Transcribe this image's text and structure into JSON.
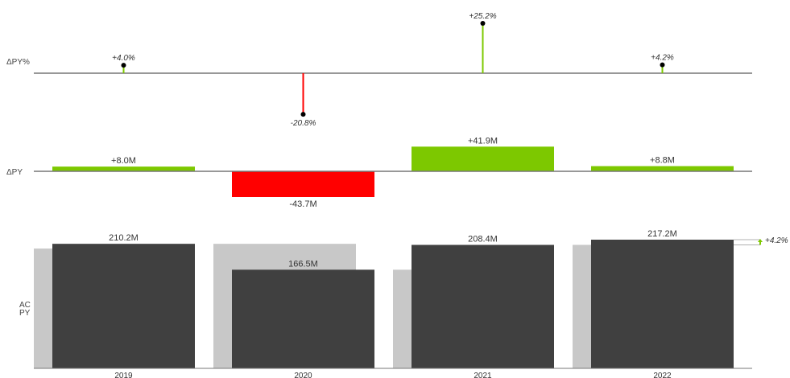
{
  "chart_data": {
    "type": "bar",
    "categories": [
      "2019",
      "2020",
      "2021",
      "2022"
    ],
    "row_labels": {
      "dpy_pct": "ΔPY%",
      "dpy": "ΔPY",
      "ac": "AC",
      "py": "PY"
    },
    "series": [
      {
        "name": "AC",
        "values": [
          210.2,
          166.5,
          208.4,
          217.2
        ],
        "labels": [
          "210.2M",
          "166.5M",
          "208.4M",
          "217.2M"
        ]
      },
      {
        "name": "PY",
        "values": [
          202.2,
          210.2,
          166.5,
          208.4
        ]
      },
      {
        "name": "ΔPY",
        "values": [
          8.0,
          -43.7,
          41.9,
          8.8
        ],
        "labels": [
          "+8.0M",
          "-43.7M",
          "+41.9M",
          "+8.8M"
        ]
      },
      {
        "name": "ΔPY%",
        "values": [
          4.0,
          -20.8,
          25.2,
          4.2
        ],
        "labels": [
          "+4.0%",
          "-20.8%",
          "+25.2%",
          "+4.2%"
        ]
      }
    ],
    "total_change_label": "+4.2%",
    "colors": {
      "ac": "#404040",
      "py": "#c8c8c8",
      "positive": "#7dc800",
      "negative": "#ff0000",
      "axis": "#777777",
      "lollipop_head": "#000000"
    },
    "grid": false,
    "legend": "none"
  }
}
